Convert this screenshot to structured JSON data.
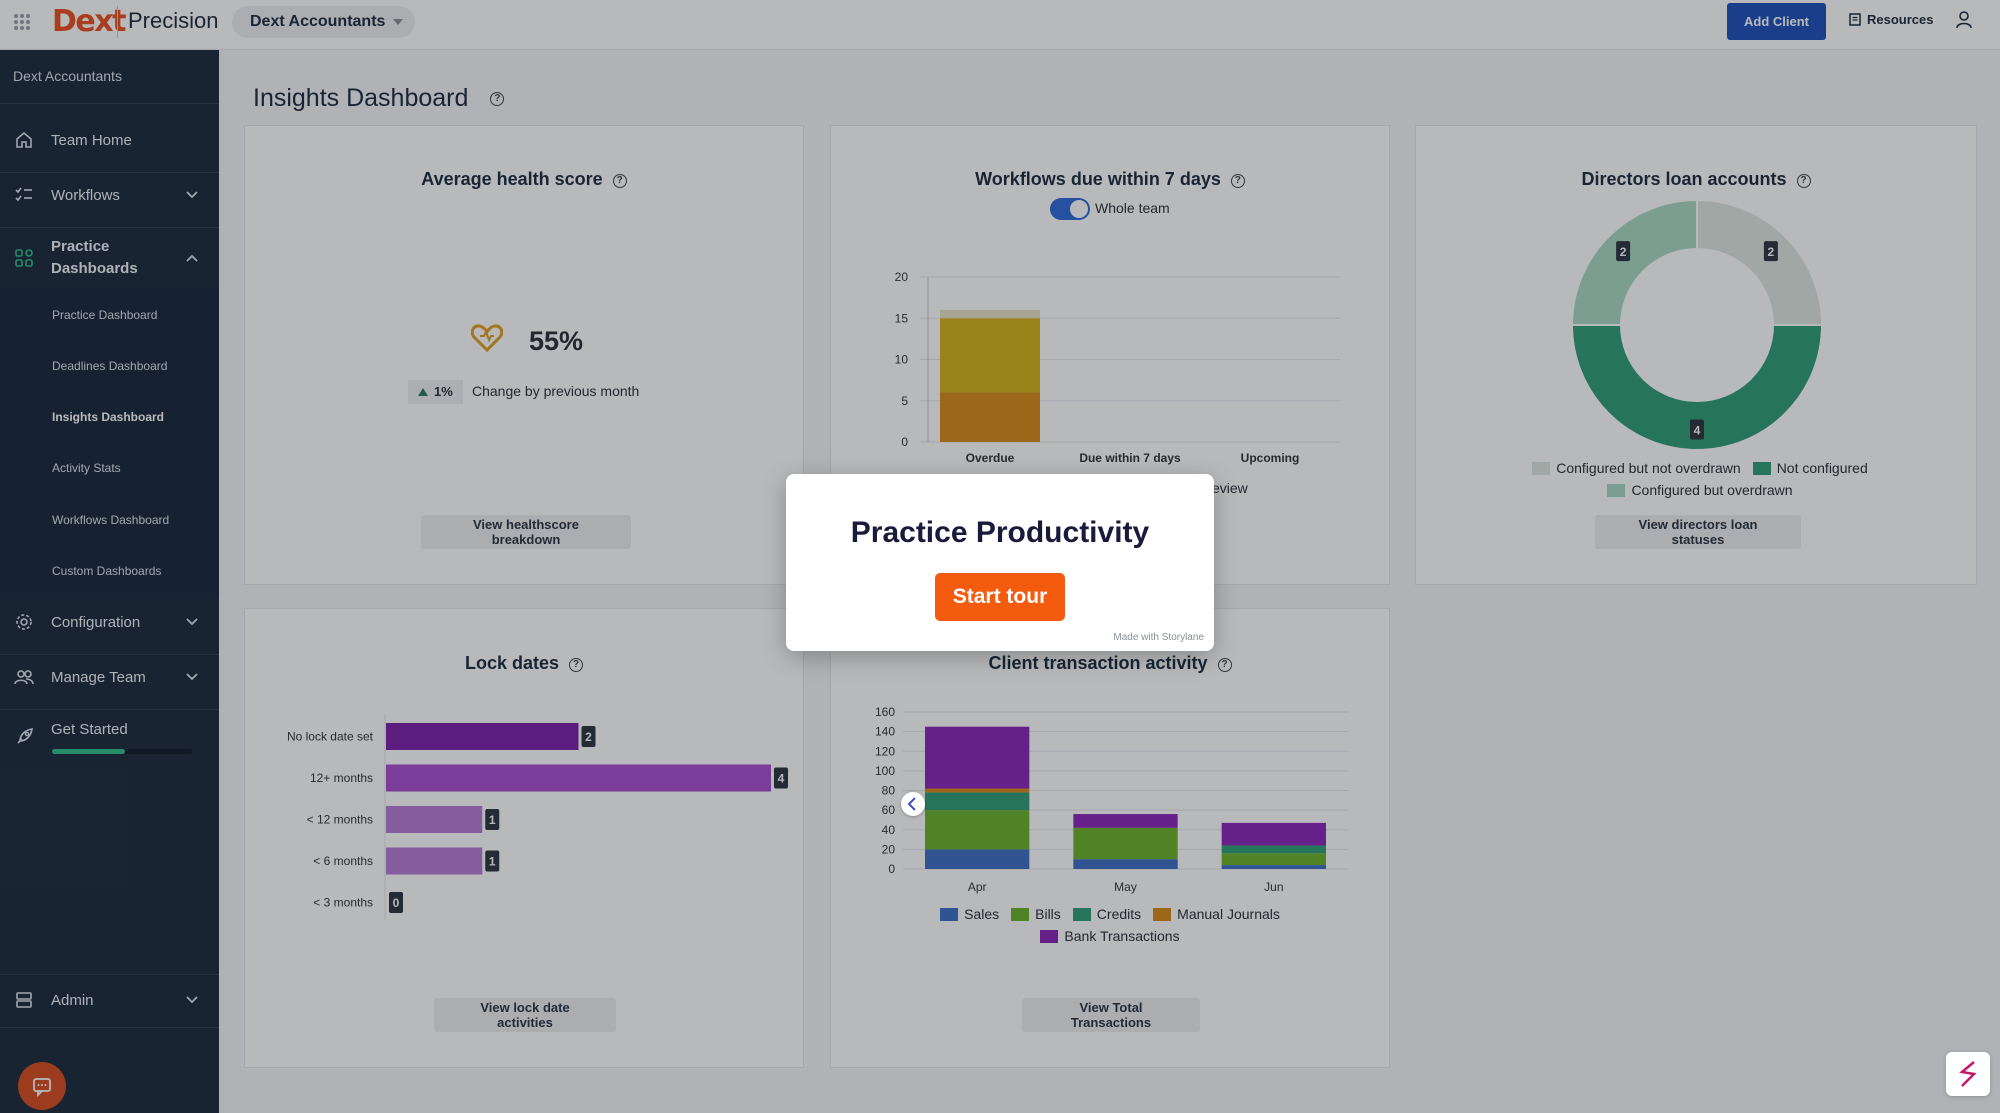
{
  "topbar": {
    "logo": "Dext",
    "product": "Precision",
    "client_selector": "Dext Accountants",
    "add_client_label": "Add Client",
    "resources_label": "Resources"
  },
  "sidebar": {
    "account": "Dext Accountants",
    "items": [
      {
        "label": "Team Home",
        "icon": "home-icon"
      },
      {
        "label": "Workflows",
        "icon": "checklist-icon"
      },
      {
        "label": "Practice Dashboards",
        "icon": "dashboard-icon"
      },
      {
        "label": "Configuration",
        "icon": "gear-icon"
      },
      {
        "label": "Manage Team",
        "icon": "team-icon"
      },
      {
        "label": "Get Started",
        "icon": "rocket-icon"
      },
      {
        "label": "Admin",
        "icon": "admin-icon"
      }
    ],
    "sub_items": [
      "Practice Dashboard",
      "Deadlines Dashboard",
      "Insights Dashboard",
      "Activity Stats",
      "Workflows Dashboard",
      "Custom Dashboards"
    ],
    "active_sub_item": "Insights Dashboard",
    "get_started_progress": 0.52
  },
  "page": {
    "title": "Insights Dashboard"
  },
  "cards": {
    "health": {
      "title": "Average health score",
      "value": "55%",
      "change": "1%",
      "change_text": "Change by previous month",
      "button": "View healthscore breakdown"
    },
    "workflows": {
      "title": "Workflows due within 7 days",
      "toggle_label": "Whole team",
      "partial_text": "eview",
      "button": ""
    },
    "directors": {
      "title": "Directors loan accounts",
      "button": "View directors loan statuses"
    },
    "lock": {
      "title": "Lock dates",
      "button": "View lock date activities"
    },
    "transactions": {
      "title": "Client transaction activity",
      "button": "View Total Transactions"
    }
  },
  "chart_data": [
    {
      "type": "bar",
      "title": "Workflows due within 7 days",
      "categories": [
        "Overdue",
        "Due within 7 days",
        "Upcoming"
      ],
      "series": [
        {
          "values": [
            6,
            0,
            0
          ],
          "color": "#d98a18"
        },
        {
          "values": [
            9,
            0,
            0
          ],
          "color": "#d6b21c"
        },
        {
          "values": [
            1,
            0,
            0
          ],
          "color": "#e8e3c6"
        }
      ],
      "ylim": [
        0,
        20
      ],
      "yticks": [
        0,
        5,
        10,
        15,
        20
      ],
      "stacked": true
    },
    {
      "type": "pie",
      "title": "Directors loan accounts",
      "donut": true,
      "slices": [
        {
          "label": "Configured but not overdrawn",
          "value": 2,
          "color": "#dfe5e0"
        },
        {
          "label": "Not configured",
          "value": 4,
          "color": "#2e9e74"
        },
        {
          "label": "Configured but overdrawn",
          "value": 2,
          "color": "#a9d9c2"
        }
      ],
      "legend": "bottom"
    },
    {
      "type": "bar",
      "title": "Lock dates",
      "orientation": "horizontal",
      "categories": [
        "No lock date set",
        "12+ months",
        "< 12 months",
        "< 6 months",
        "< 3 months"
      ],
      "values": [
        2,
        4,
        1,
        1,
        0
      ],
      "colors": [
        "#7a22a8",
        "#a74fd0",
        "#b77bd6",
        "#b77bd6",
        "#b77bd6"
      ],
      "xlim": [
        0,
        4
      ]
    },
    {
      "type": "bar",
      "title": "Client transaction activity",
      "stacked": true,
      "categories": [
        "Apr",
        "May",
        "Jun"
      ],
      "series": [
        {
          "name": "Sales",
          "values": [
            20,
            10,
            4
          ],
          "color": "#3d6fc4"
        },
        {
          "name": "Bills",
          "values": [
            40,
            32,
            12
          ],
          "color": "#6ab22a"
        },
        {
          "name": "Credits",
          "values": [
            18,
            0,
            8
          ],
          "color": "#2e9e74"
        },
        {
          "name": "Manual Journals",
          "values": [
            4,
            0,
            0
          ],
          "color": "#d98a18"
        },
        {
          "name": "Bank Transactions",
          "values": [
            63,
            14,
            23
          ],
          "color": "#8a24b8"
        }
      ],
      "ylim": [
        0,
        160
      ],
      "yticks": [
        0,
        20,
        40,
        60,
        80,
        100,
        120,
        140,
        160
      ],
      "legend": "bottom"
    }
  ],
  "modal": {
    "title": "Practice Productivity",
    "button": "Start tour",
    "made_with": "Made with",
    "brand": "Storylane"
  }
}
